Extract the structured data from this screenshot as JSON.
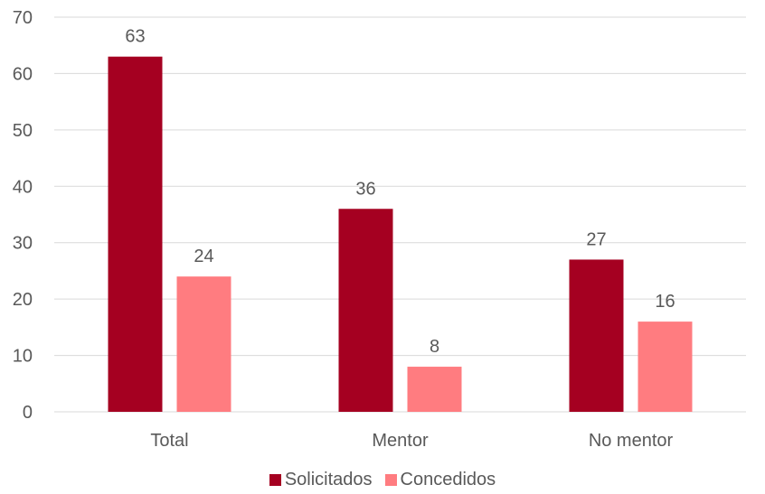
{
  "chart_data": {
    "type": "bar",
    "categories": [
      "Total",
      "Mentor",
      "No mentor"
    ],
    "series": [
      {
        "name": "Solicitados",
        "values": [
          63,
          36,
          27
        ],
        "color": "#A50021"
      },
      {
        "name": "Concedidos",
        "values": [
          24,
          8,
          16
        ],
        "color": "#FF7C80"
      }
    ],
    "ylim": [
      0,
      70
    ],
    "yticks": [
      0,
      10,
      20,
      30,
      40,
      50,
      60,
      70
    ],
    "grid": true,
    "legend": "bottom",
    "data_labels": true
  }
}
